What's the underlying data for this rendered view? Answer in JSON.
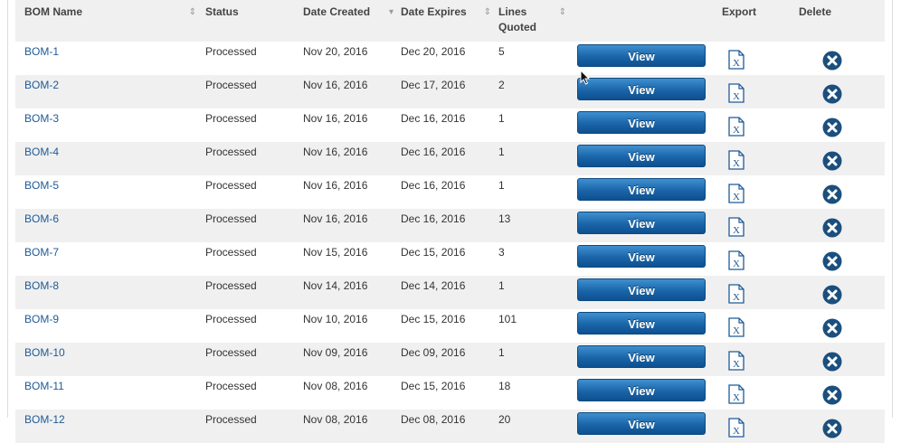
{
  "columns": {
    "bom_name": "BOM Name",
    "status": "Status",
    "date_created": "Date Created",
    "date_expires": "Date Expires",
    "lines_quoted_1": "Lines",
    "lines_quoted_2": "Quoted",
    "export": "Export",
    "delete": "Delete"
  },
  "sort_indicators": {
    "bom_name": "sortable",
    "status": "none",
    "date_created": "descending",
    "date_expires": "sortable",
    "lines_quoted": "sortable"
  },
  "view_label": "View",
  "colors": {
    "link": "#1f5a96",
    "button": "#1a65a8",
    "delete_icon": "#1b4f7e",
    "row_alt": "#f0f0f0"
  },
  "rows": [
    {
      "name": "BOM-1",
      "status": "Processed",
      "created": "Nov 20, 2016",
      "expires": "Dec 20, 2016",
      "lines": "5"
    },
    {
      "name": "BOM-2",
      "status": "Processed",
      "created": "Nov 16, 2016",
      "expires": "Dec 17, 2016",
      "lines": "2"
    },
    {
      "name": "BOM-3",
      "status": "Processed",
      "created": "Nov 16, 2016",
      "expires": "Dec 16, 2016",
      "lines": "1"
    },
    {
      "name": "BOM-4",
      "status": "Processed",
      "created": "Nov 16, 2016",
      "expires": "Dec 16, 2016",
      "lines": "1"
    },
    {
      "name": "BOM-5",
      "status": "Processed",
      "created": "Nov 16, 2016",
      "expires": "Dec 16, 2016",
      "lines": "1"
    },
    {
      "name": "BOM-6",
      "status": "Processed",
      "created": "Nov 16, 2016",
      "expires": "Dec 16, 2016",
      "lines": "13"
    },
    {
      "name": "BOM-7",
      "status": "Processed",
      "created": "Nov 15, 2016",
      "expires": "Dec 15, 2016",
      "lines": "3"
    },
    {
      "name": "BOM-8",
      "status": "Processed",
      "created": "Nov 14, 2016",
      "expires": "Dec 14, 2016",
      "lines": "1"
    },
    {
      "name": "BOM-9",
      "status": "Processed",
      "created": "Nov 10, 2016",
      "expires": "Dec 15, 2016",
      "lines": "101"
    },
    {
      "name": "BOM-10",
      "status": "Processed",
      "created": "Nov 09, 2016",
      "expires": "Dec 09, 2016",
      "lines": "1"
    },
    {
      "name": "BOM-11",
      "status": "Processed",
      "created": "Nov 08, 2016",
      "expires": "Dec 15, 2016",
      "lines": "18"
    },
    {
      "name": "BOM-12",
      "status": "Processed",
      "created": "Nov 08, 2016",
      "expires": "Dec 08, 2016",
      "lines": "20"
    }
  ]
}
